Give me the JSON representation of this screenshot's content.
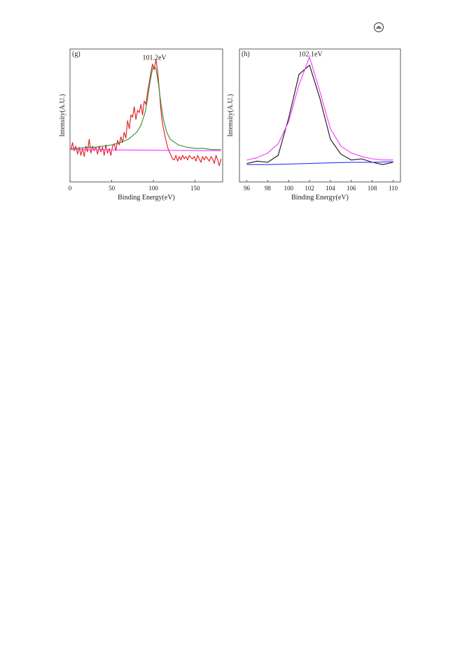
{
  "page_icon": "circled-symbol-icon",
  "chart_data": [
    {
      "type": "line",
      "panel_label": "(g)",
      "title": "",
      "xlabel": "Binding Energy(eV)",
      "ylabel": "Intensity(A.U.)",
      "xlim": [
        0,
        183
      ],
      "ylim": [
        0,
        1
      ],
      "xticks": [
        0,
        50,
        100,
        150
      ],
      "yticks_shown": false,
      "grid": false,
      "annotations": [
        {
          "text": "101.2eV",
          "x": 101.2,
          "y": 0.92
        }
      ],
      "series": [
        {
          "color": "#e41a1c",
          "x": [
            1,
            3,
            5,
            7,
            9,
            11,
            13,
            15,
            17,
            19,
            21,
            23,
            25,
            27,
            29,
            31,
            33,
            35,
            37,
            39,
            41,
            43,
            45,
            47,
            49,
            51,
            53,
            55,
            57,
            59,
            61,
            63,
            65,
            67,
            69,
            71,
            73,
            75,
            77,
            79,
            81,
            83,
            85,
            87,
            89,
            91,
            93,
            95,
            97,
            99,
            101,
            103,
            105,
            107,
            109,
            111,
            113,
            115,
            117,
            119,
            121,
            123,
            125,
            127,
            129,
            131,
            133,
            135,
            137,
            139,
            141,
            143,
            145,
            147,
            149,
            151,
            153,
            155,
            157,
            159,
            161,
            163,
            165,
            167,
            169,
            171,
            173,
            175,
            177,
            179,
            181
          ],
          "values": [
            0.18,
            0.24,
            0.17,
            0.21,
            0.14,
            0.2,
            0.13,
            0.19,
            0.12,
            0.21,
            0.16,
            0.27,
            0.15,
            0.21,
            0.17,
            0.2,
            0.14,
            0.21,
            0.16,
            0.2,
            0.13,
            0.22,
            0.15,
            0.19,
            0.13,
            0.21,
            0.23,
            0.17,
            0.26,
            0.22,
            0.29,
            0.24,
            0.33,
            0.28,
            0.43,
            0.36,
            0.48,
            0.46,
            0.55,
            0.44,
            0.52,
            0.5,
            0.57,
            0.48,
            0.6,
            0.57,
            0.68,
            0.76,
            0.85,
            0.92,
            0.87,
            0.96,
            0.86,
            0.7,
            0.52,
            0.4,
            0.33,
            0.26,
            0.2,
            0.16,
            0.13,
            0.1,
            0.09,
            0.13,
            0.08,
            0.12,
            0.09,
            0.13,
            0.1,
            0.12,
            0.09,
            0.13,
            0.11,
            0.1,
            0.12,
            0.08,
            0.13,
            0.1,
            0.07,
            0.12,
            0.09,
            0.12,
            0.1,
            0.08,
            0.12,
            0.1,
            0.06,
            0.13,
            0.09,
            0.04,
            0.1
          ]
        },
        {
          "color": "#2e8b2e",
          "x": [
            1,
            10,
            20,
            30,
            40,
            50,
            60,
            70,
            80,
            85,
            90,
            93,
            96,
            99,
            101.2,
            103,
            106,
            109,
            112,
            116,
            120,
            130,
            140,
            150,
            160,
            170,
            181
          ],
          "values": [
            0.19,
            0.19,
            0.2,
            0.2,
            0.21,
            0.22,
            0.24,
            0.27,
            0.33,
            0.39,
            0.5,
            0.62,
            0.77,
            0.88,
            0.9,
            0.88,
            0.75,
            0.58,
            0.44,
            0.33,
            0.27,
            0.22,
            0.2,
            0.19,
            0.19,
            0.18,
            0.18
          ]
        },
        {
          "color": "#ff33ff",
          "x": [
            1,
            181
          ],
          "values": [
            0.18,
            0.17
          ]
        }
      ]
    },
    {
      "type": "line",
      "panel_label": "(h)",
      "title": "",
      "xlabel": "Binding Energy(eV)",
      "ylabel": "Intensity(A.U.)",
      "xlim": [
        95.3,
        110.7
      ],
      "ylim": [
        0,
        1
      ],
      "xticks": [
        96,
        98,
        100,
        102,
        104,
        106,
        108,
        110
      ],
      "yticks_shown": false,
      "grid": false,
      "annotations": [
        {
          "text": "102.1eV",
          "x": 102.1,
          "y": 0.95
        }
      ],
      "series": [
        {
          "color": "#111111",
          "x": [
            96,
            97,
            98,
            99,
            100,
            101,
            102,
            103,
            104,
            105,
            106,
            107,
            108,
            109,
            110
          ],
          "values": [
            0.06,
            0.08,
            0.07,
            0.13,
            0.45,
            0.83,
            0.91,
            0.62,
            0.27,
            0.14,
            0.09,
            0.1,
            0.07,
            0.05,
            0.07
          ]
        },
        {
          "color": "#ff33ff",
          "x": [
            96,
            97,
            98,
            99,
            100,
            101,
            102,
            103,
            104,
            105,
            106,
            107,
            108,
            109,
            110
          ],
          "values": [
            0.09,
            0.11,
            0.15,
            0.23,
            0.42,
            0.74,
            0.98,
            0.68,
            0.36,
            0.21,
            0.15,
            0.12,
            0.1,
            0.09,
            0.09
          ]
        },
        {
          "color": "#3333ff",
          "x": [
            96,
            98,
            100,
            102,
            104,
            106,
            108,
            110
          ],
          "values": [
            0.05,
            0.05,
            0.055,
            0.06,
            0.065,
            0.07,
            0.07,
            0.075
          ]
        }
      ]
    }
  ]
}
